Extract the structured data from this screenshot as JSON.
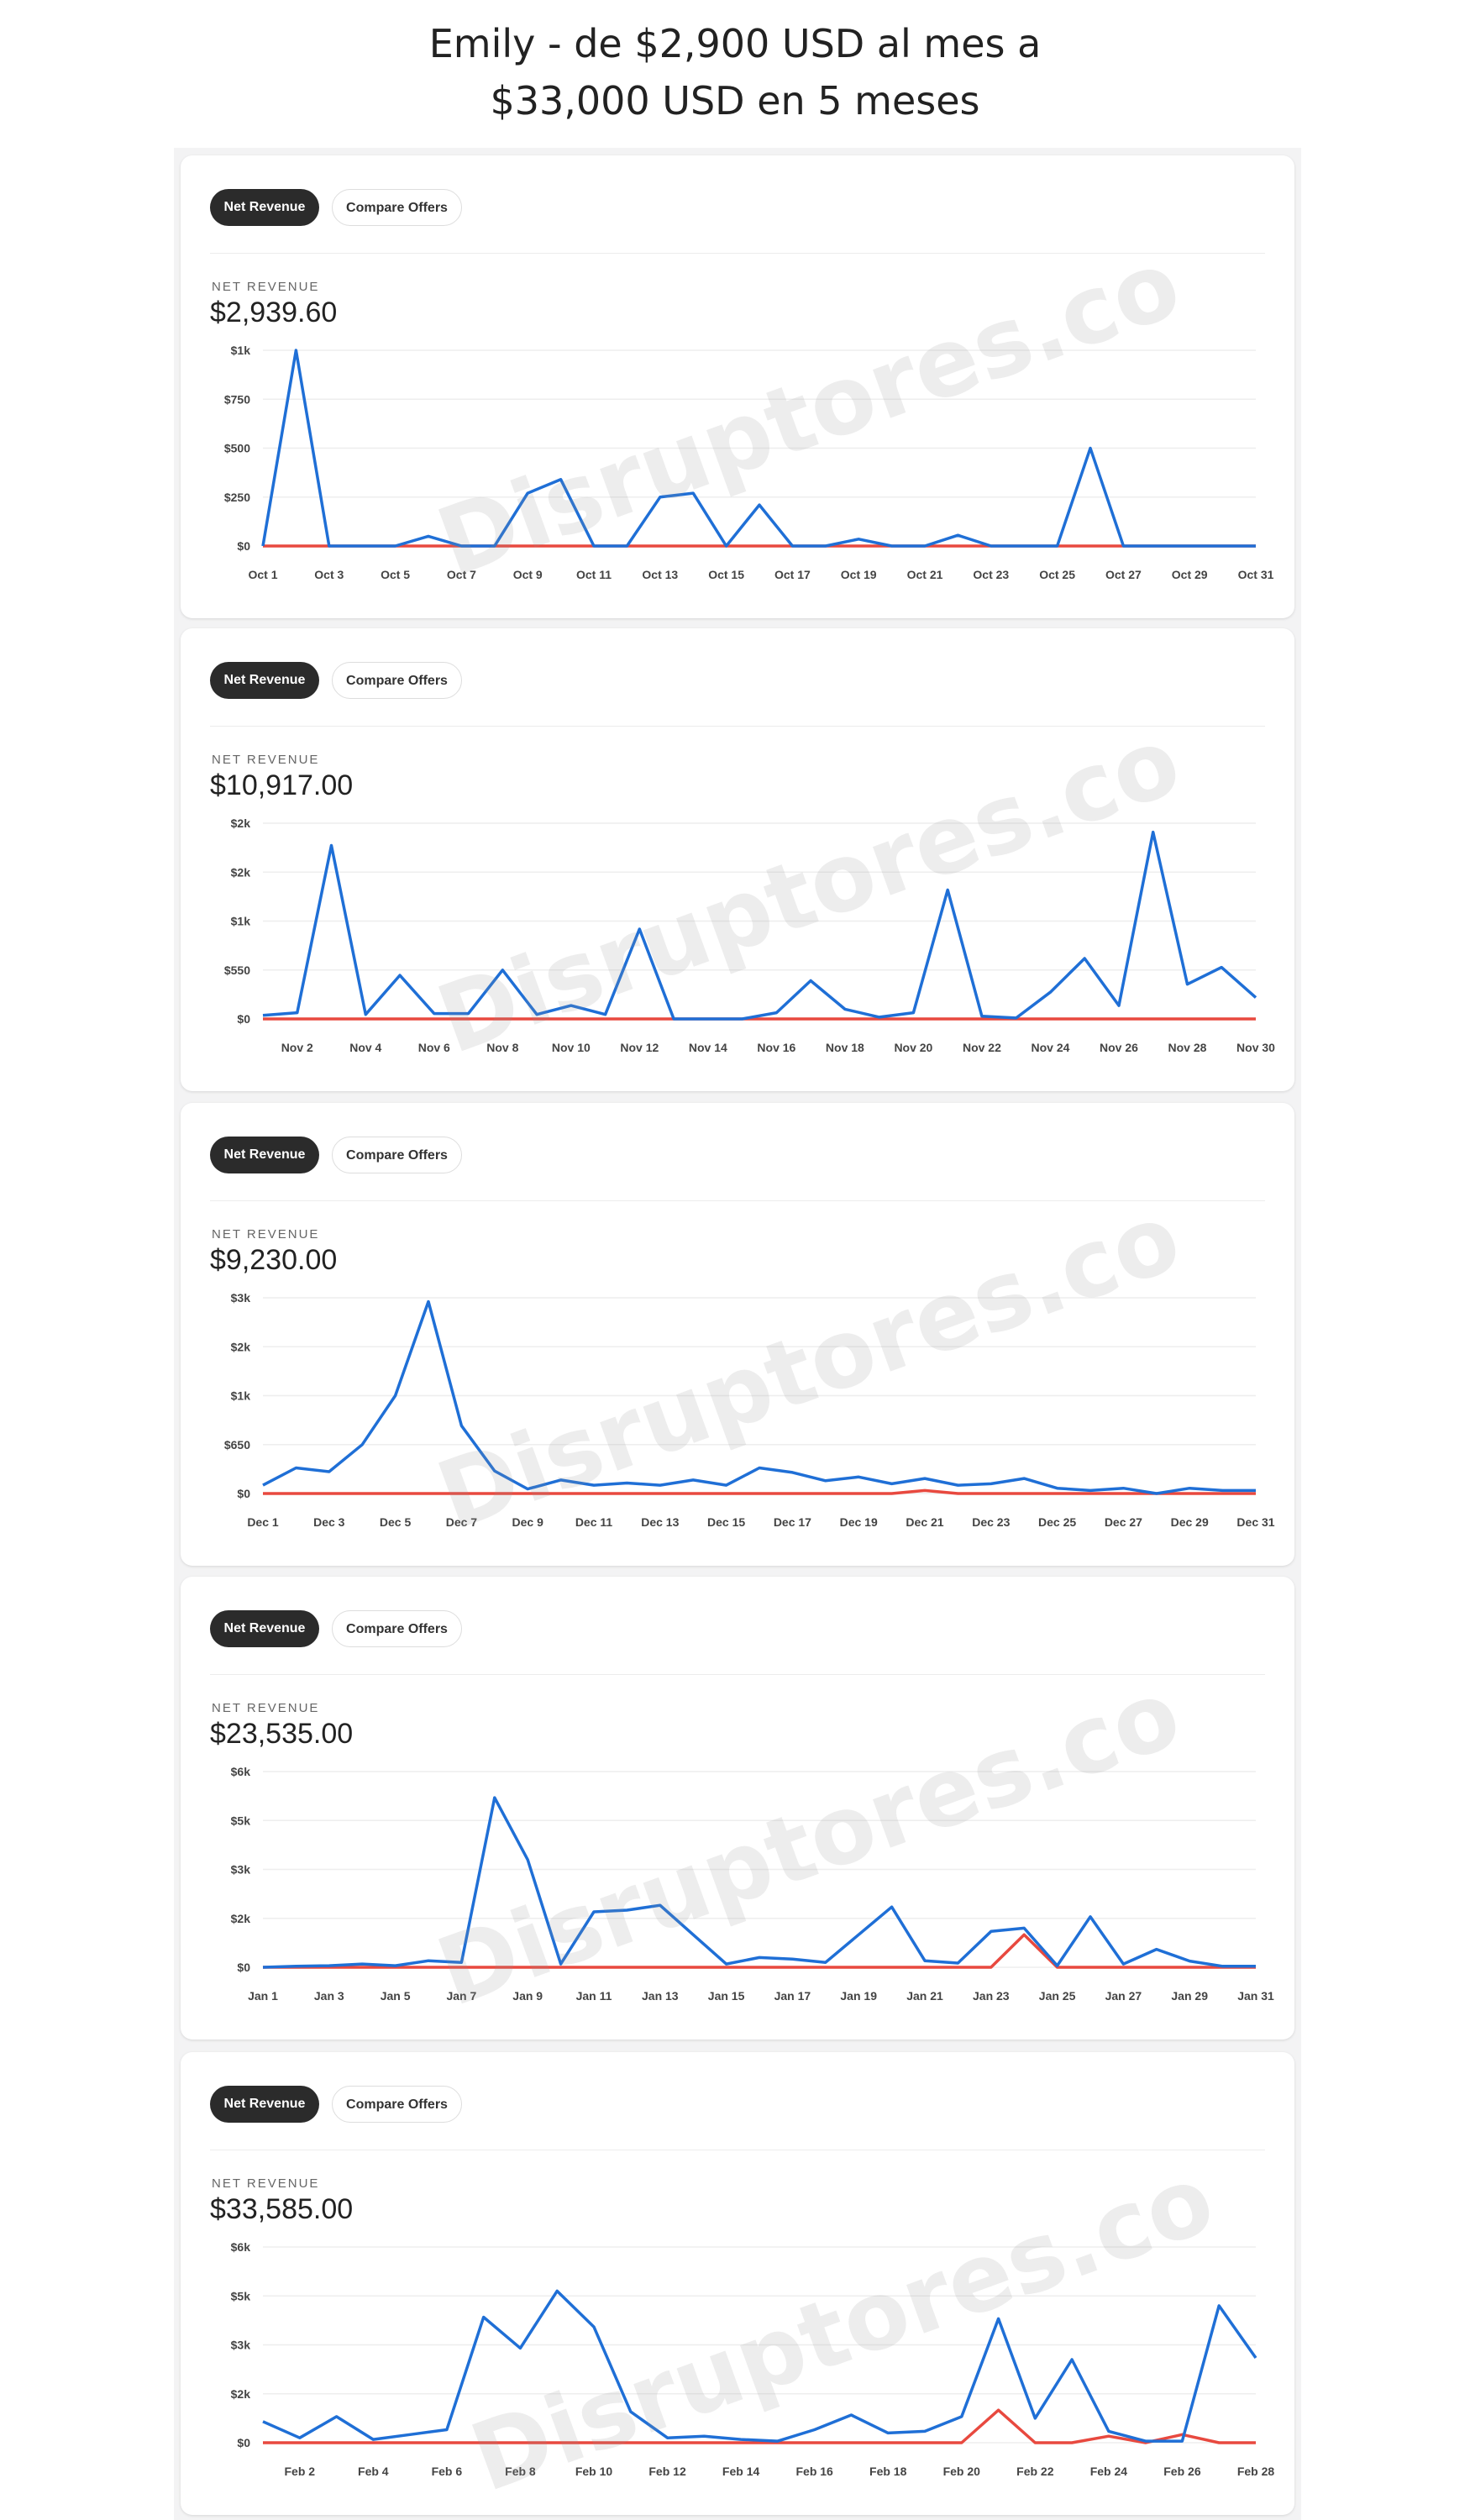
{
  "title_line1": "Emily - de $2,900 USD al mes a",
  "title_line2": "$33,000 USD en 5 meses",
  "watermark": "Disruptores.co",
  "colors": {
    "revenue": "#1f6fd6",
    "compare": "#e8493f",
    "grid": "#eeeeee"
  },
  "cards": [
    {
      "net_label": "Net Revenue",
      "compare_label": "Compare Offers",
      "metric_label": "NET REVENUE",
      "total": "$2,939.60",
      "chart_data": {
        "type": "line",
        "yticks": [
          "$0",
          "$250",
          "$500",
          "$750",
          "$1k"
        ],
        "ymax": 1000,
        "xticks": [
          "Oct 1",
          "Oct 3",
          "Oct 5",
          "Oct 7",
          "Oct 9",
          "Oct 11",
          "Oct 13",
          "Oct 15",
          "Oct 17",
          "Oct 19",
          "Oct 21",
          "Oct 23",
          "Oct 25",
          "Oct 27",
          "Oct 29",
          "Oct 31"
        ],
        "xtick_first_index": 0,
        "series": [
          {
            "values": [
              0,
              1000,
              0,
              0,
              0,
              50,
              0,
              0,
              270,
              340,
              0,
              0,
              250,
              270,
              0,
              210,
              0,
              0,
              35,
              0,
              0,
              55,
              0,
              0,
              0,
              500,
              0,
              0,
              0,
              0,
              0
            ]
          },
          {
            "values": [
              0,
              0,
              0,
              0,
              0,
              0,
              0,
              0,
              0,
              0,
              0,
              0,
              0,
              0,
              0,
              0,
              0,
              0,
              0,
              0,
              0,
              0,
              0,
              0,
              0,
              0,
              0,
              0,
              0,
              0,
              0
            ]
          }
        ]
      }
    },
    {
      "net_label": "Net Revenue",
      "compare_label": "Compare Offers",
      "metric_label": "NET REVENUE",
      "total": "$10,917.00",
      "chart_data": {
        "type": "line",
        "yticks": [
          "$0",
          "$550",
          "$1k",
          "$2k",
          "$2k"
        ],
        "ymax": 2200,
        "xticks": [
          "Nov 2",
          "Nov 4",
          "Nov 6",
          "Nov 8",
          "Nov 10",
          "Nov 12",
          "Nov 14",
          "Nov 16",
          "Nov 18",
          "Nov 20",
          "Nov 22",
          "Nov 24",
          "Nov 26",
          "Nov 28",
          "Nov 30"
        ],
        "xtick_first_index": 1,
        "series": [
          {
            "values": [
              40,
              70,
              1950,
              50,
              490,
              60,
              60,
              550,
              50,
              150,
              50,
              1010,
              0,
              0,
              0,
              70,
              430,
              110,
              20,
              70,
              1450,
              30,
              10,
              300,
              680,
              150,
              2100,
              390,
              580,
              240
            ]
          },
          {
            "values": [
              0,
              0,
              0,
              0,
              0,
              0,
              0,
              0,
              0,
              0,
              0,
              0,
              0,
              0,
              0,
              0,
              0,
              0,
              0,
              0,
              0,
              0,
              0,
              0,
              0,
              0,
              0,
              0,
              0,
              0
            ]
          }
        ]
      }
    },
    {
      "net_label": "Net Revenue",
      "compare_label": "Compare Offers",
      "metric_label": "NET REVENUE",
      "total": "$9,230.00",
      "chart_data": {
        "type": "line",
        "yticks": [
          "$0",
          "$650",
          "$1k",
          "$2k",
          "$3k"
        ],
        "ymax": 2600,
        "xticks": [
          "Dec 1",
          "Dec 3",
          "Dec 5",
          "Dec 7",
          "Dec 9",
          "Dec 11",
          "Dec 13",
          "Dec 15",
          "Dec 17",
          "Dec 19",
          "Dec 21",
          "Dec 23",
          "Dec 25",
          "Dec 27",
          "Dec 29",
          "Dec 31"
        ],
        "xtick_first_index": 0,
        "series": [
          {
            "values": [
              110,
              340,
              290,
              650,
              1300,
              2550,
              900,
              300,
              60,
              180,
              110,
              140,
              110,
              180,
              110,
              340,
              280,
              170,
              220,
              130,
              200,
              110,
              130,
              200,
              70,
              40,
              70,
              0,
              70,
              40,
              40
            ]
          },
          {
            "values": [
              0,
              0,
              0,
              0,
              0,
              0,
              0,
              0,
              0,
              0,
              0,
              0,
              0,
              0,
              0,
              0,
              0,
              0,
              0,
              0,
              40,
              0,
              0,
              0,
              0,
              0,
              0,
              0,
              0,
              0,
              0
            ]
          }
        ]
      }
    },
    {
      "net_label": "Net Revenue",
      "compare_label": "Compare Offers",
      "metric_label": "NET REVENUE",
      "total": "$23,535.00",
      "chart_data": {
        "type": "line",
        "yticks": [
          "$0",
          "$2k",
          "$3k",
          "$5k",
          "$6k"
        ],
        "ymax": 6000,
        "xticks": [
          "Jan 1",
          "Jan 3",
          "Jan 5",
          "Jan 7",
          "Jan 9",
          "Jan 11",
          "Jan 13",
          "Jan 15",
          "Jan 17",
          "Jan 19",
          "Jan 21",
          "Jan 23",
          "Jan 25",
          "Jan 27",
          "Jan 29",
          "Jan 31"
        ],
        "xtick_first_index": 0,
        "series": [
          {
            "values": [
              0,
              30,
              50,
              100,
              50,
              200,
              150,
              5200,
              3300,
              100,
              1700,
              1750,
              1900,
              1000,
              100,
              300,
              250,
              150,
              1000,
              1850,
              200,
              130,
              1100,
              1200,
              50,
              1550,
              100,
              550,
              190,
              30,
              30
            ]
          },
          {
            "values": [
              0,
              0,
              0,
              0,
              0,
              0,
              0,
              0,
              0,
              0,
              0,
              0,
              0,
              0,
              0,
              0,
              0,
              0,
              0,
              0,
              0,
              0,
              0,
              1000,
              0,
              0,
              0,
              0,
              0,
              0,
              0
            ]
          }
        ]
      }
    },
    {
      "net_label": "Net Revenue",
      "compare_label": "Compare Offers",
      "metric_label": "NET REVENUE",
      "total": "$33,585.00",
      "chart_data": {
        "type": "line",
        "yticks": [
          "$0",
          "$2k",
          "$3k",
          "$5k",
          "$6k"
        ],
        "ymax": 6000,
        "xticks": [
          "Feb 2",
          "Feb 4",
          "Feb 6",
          "Feb 8",
          "Feb 10",
          "Feb 12",
          "Feb 14",
          "Feb 16",
          "Feb 18",
          "Feb 20",
          "Feb 22",
          "Feb 24",
          "Feb 26",
          "Feb 28"
        ],
        "xtick_first_index": 1,
        "series": [
          {
            "values": [
              650,
              150,
              800,
              100,
              250,
              400,
              3850,
              2900,
              4650,
              3550,
              950,
              150,
              200,
              100,
              50,
              400,
              850,
              300,
              350,
              800,
              3800,
              750,
              2550,
              350,
              50,
              50,
              4200,
              2600
            ]
          },
          {
            "values": [
              0,
              0,
              0,
              0,
              0,
              0,
              0,
              0,
              0,
              0,
              0,
              0,
              0,
              0,
              0,
              0,
              0,
              0,
              0,
              0,
              1000,
              0,
              0,
              200,
              0,
              250,
              0,
              0
            ]
          }
        ]
      }
    }
  ]
}
